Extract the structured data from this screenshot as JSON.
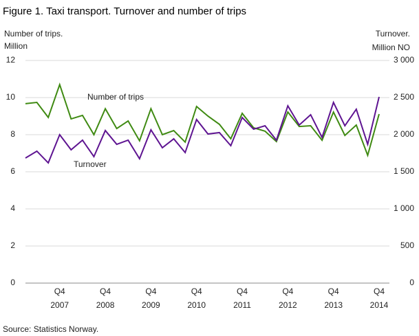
{
  "chart_data": {
    "type": "line",
    "title": "Figure 1. Taxi transport. Turnover and number of trips",
    "y_label": [
      "Number  of trips.",
      "Million"
    ],
    "y2_label": [
      "Turnover.",
      "Million  NO"
    ],
    "source": "Source: Statistics Norway.",
    "categories": [
      null,
      null,
      null,
      [
        "Q4",
        "2007"
      ],
      null,
      null,
      null,
      [
        "Q4",
        "2008"
      ],
      null,
      null,
      null,
      [
        "Q4",
        "2009"
      ],
      null,
      null,
      null,
      [
        "Q4",
        "2010"
      ],
      null,
      null,
      null,
      [
        "Q4",
        "2011"
      ],
      null,
      null,
      null,
      [
        "Q4",
        "2012"
      ],
      null,
      null,
      null,
      [
        "Q4",
        "2013"
      ],
      null,
      null,
      null,
      [
        "Q4",
        "2014"
      ]
    ],
    "series": [
      {
        "name": "Number of trips",
        "color": "#3f8a12",
        "axis": "y",
        "values": [
          9.67,
          9.74,
          8.93,
          10.7,
          8.85,
          9.04,
          8.0,
          9.4,
          8.33,
          8.74,
          7.67,
          9.4,
          8.0,
          8.22,
          7.6,
          9.52,
          9.0,
          8.56,
          7.78,
          9.15,
          8.37,
          8.19,
          7.63,
          9.22,
          8.44,
          8.48,
          7.7,
          9.22,
          7.96,
          8.52,
          6.89,
          9.11
        ]
      },
      {
        "name": "Turnover",
        "color": "#5e1491",
        "axis": "y2",
        "values": [
          1685,
          1778,
          1620,
          2000,
          1796,
          1926,
          1704,
          2056,
          1870,
          1926,
          1676,
          2065,
          1824,
          1944,
          1759,
          2204,
          2009,
          2028,
          1852,
          2231,
          2074,
          2120,
          1926,
          2389,
          2130,
          2269,
          1963,
          2435,
          2120,
          2343,
          1870,
          2509
        ]
      }
    ],
    "ylim": [
      0,
      12
    ],
    "yticks": [
      0,
      2,
      4,
      6,
      8,
      10,
      12
    ],
    "y2lim": [
      0,
      3000
    ],
    "y2ticks": [
      0,
      500,
      {
        "value": 1000,
        "label": "1 000"
      },
      {
        "value": 1500,
        "label": "1 500"
      },
      {
        "value": 2000,
        "label": "2 000"
      },
      {
        "value": 2500,
        "label": "2 500"
      },
      {
        "value": 3000,
        "label": "3 000"
      }
    ],
    "grid": true
  }
}
